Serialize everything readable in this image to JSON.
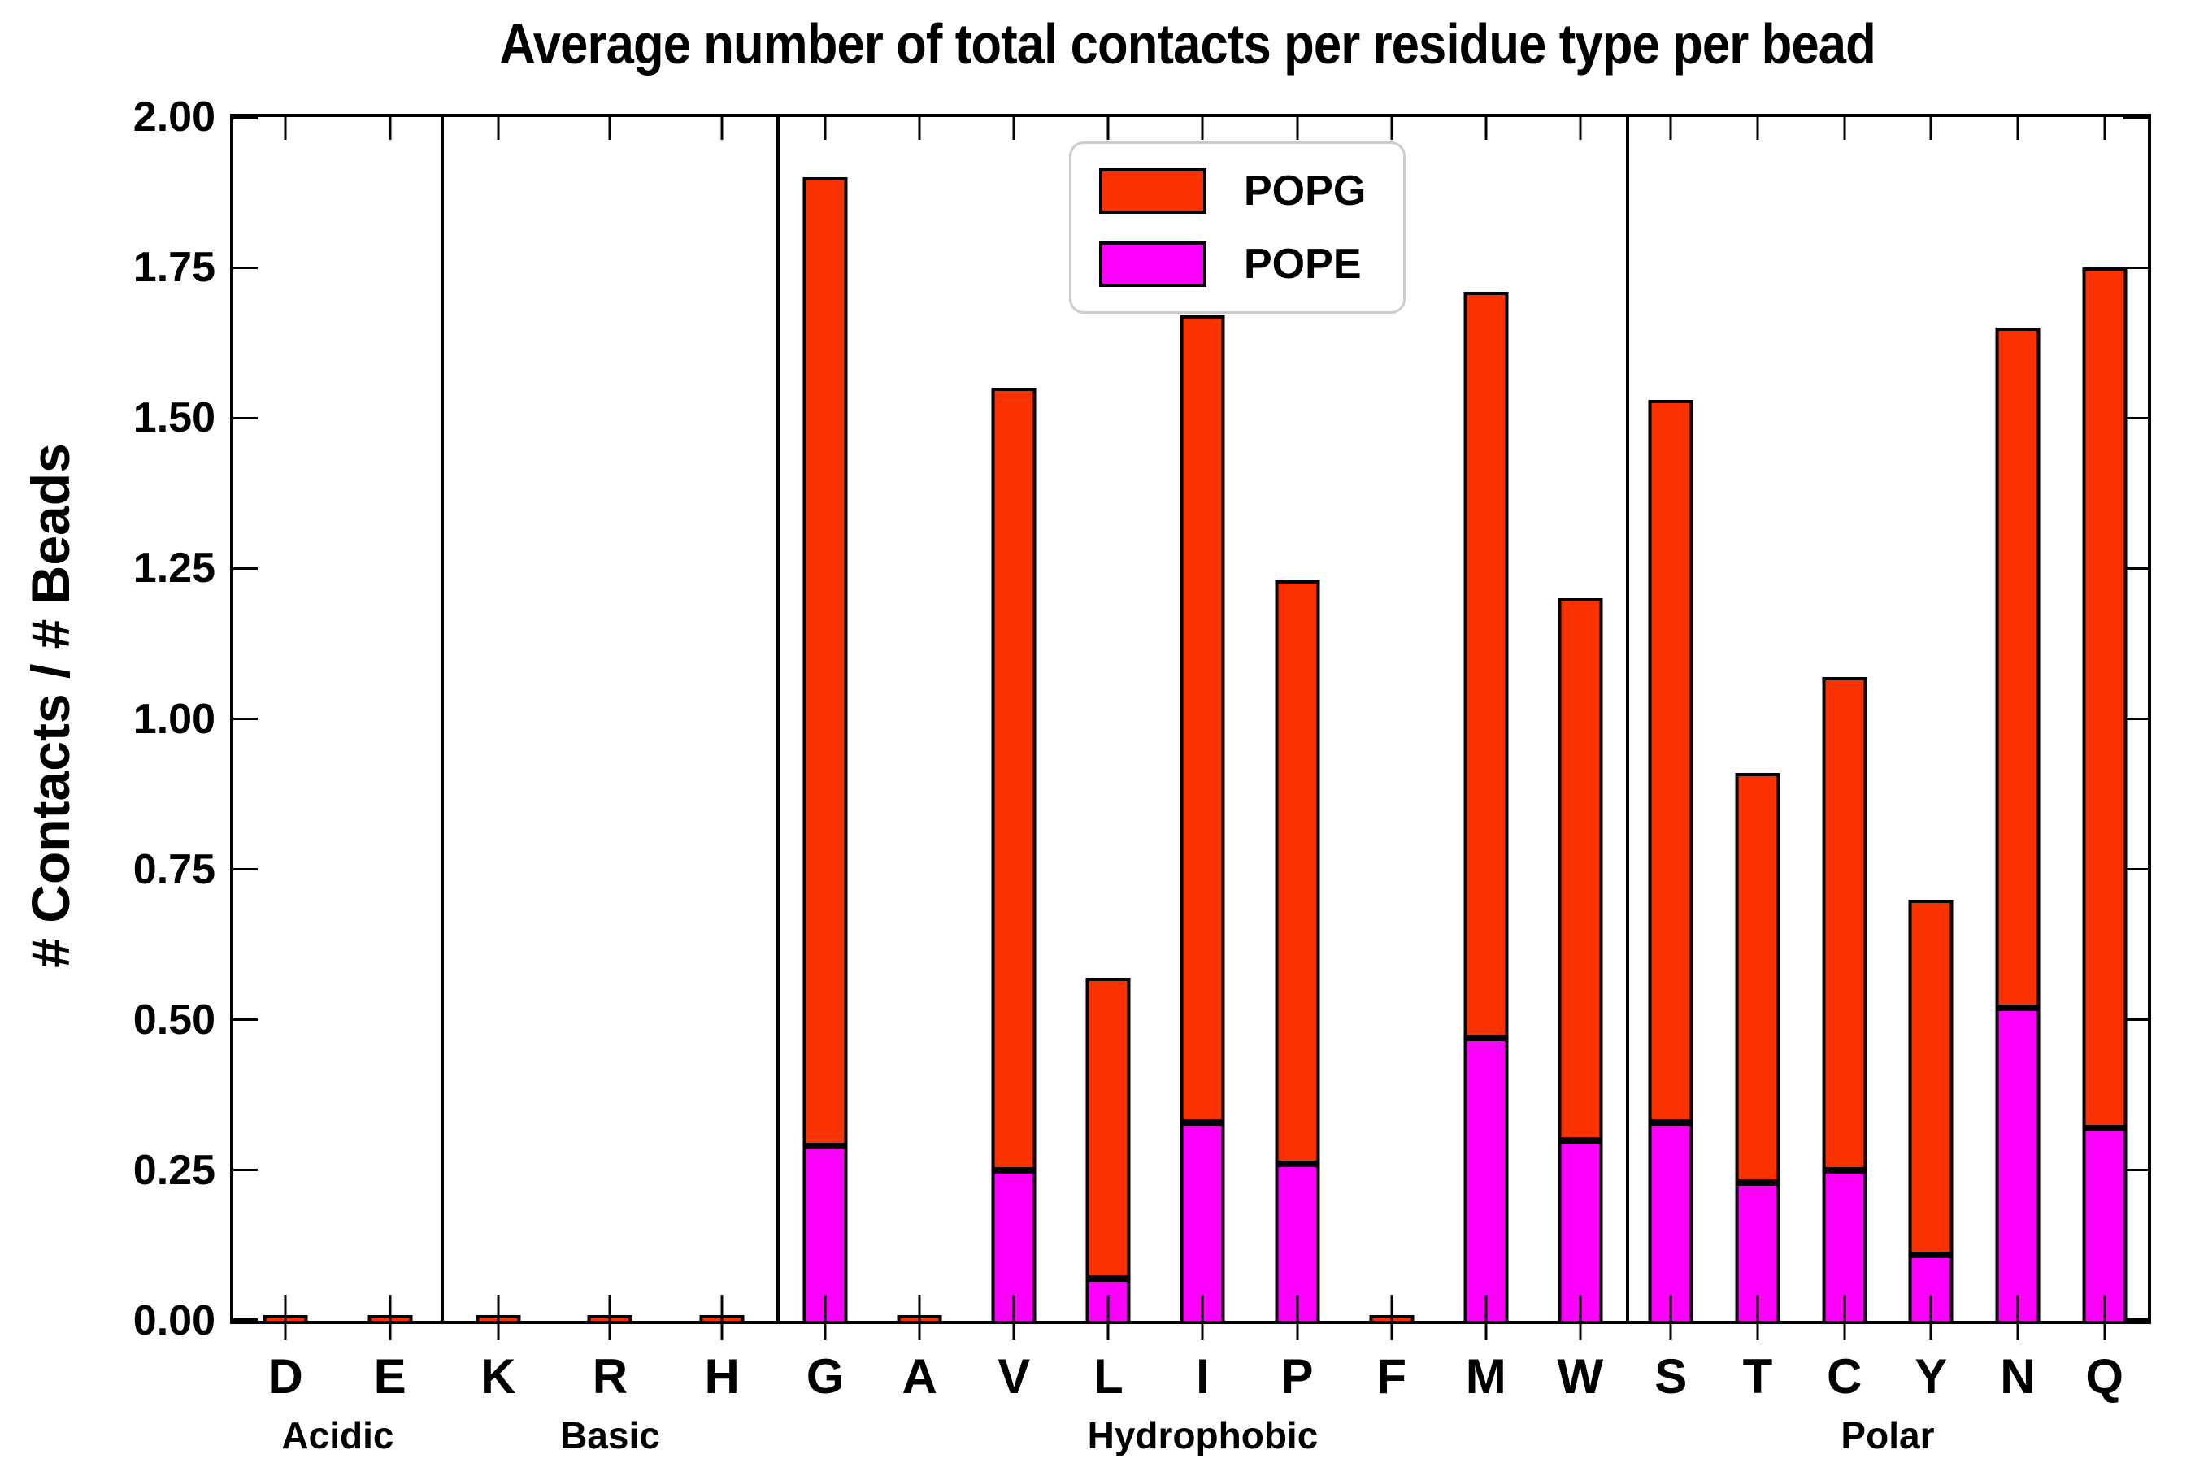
{
  "title": "Average number of total contacts per residue type per bead",
  "ylabel": "# Contacts / # Beads",
  "legend": {
    "popg_label": "POPG",
    "pope_label": "POPE"
  },
  "colors": {
    "popg": "#fa3200",
    "pope": "#ff00ff",
    "axis": "#000000",
    "legend_border": "#cccccc"
  },
  "chart_data": {
    "type": "bar",
    "stacked": true,
    "title": "Average number of total contacts per residue type per bead",
    "xlabel": "",
    "ylabel": "# Contacts / # Beads",
    "ylim": [
      0.0,
      2.0
    ],
    "ytick_step": 0.25,
    "yticks": [
      "0.00",
      "0.25",
      "0.50",
      "0.75",
      "1.00",
      "1.25",
      "1.50",
      "1.75",
      "2.00"
    ],
    "grid": false,
    "legend_position": "upper center",
    "groups": [
      {
        "label": "Acidic",
        "categories": [
          "D",
          "E"
        ],
        "width_frac": 0.1091
      },
      {
        "label": "Basic",
        "categories": [
          "K",
          "R",
          "H"
        ],
        "width_frac": 0.1754
      },
      {
        "label": "Hydrophobic",
        "categories": [
          "G",
          "A",
          "V",
          "L",
          "I",
          "P",
          "F",
          "M",
          "W"
        ],
        "width_frac": 0.4437
      },
      {
        "label": "Polar",
        "categories": [
          "S",
          "T",
          "C",
          "Y",
          "N",
          "Q"
        ],
        "width_frac": 0.2718
      }
    ],
    "categories_flat": [
      "D",
      "E",
      "K",
      "R",
      "H",
      "G",
      "A",
      "V",
      "L",
      "I",
      "P",
      "F",
      "M",
      "W",
      "S",
      "T",
      "C",
      "Y",
      "N",
      "Q"
    ],
    "series": [
      {
        "name": "POPE",
        "color": "#ff00ff",
        "values": [
          0.0,
          0.0,
          0.0,
          0.0,
          0.0,
          0.29,
          0.0,
          0.25,
          0.07,
          0.33,
          0.26,
          0.0,
          0.47,
          0.3,
          0.33,
          0.23,
          0.25,
          0.11,
          0.52,
          0.32
        ]
      },
      {
        "name": "POPG",
        "color": "#fa3200",
        "values": [
          0.01,
          0.01,
          0.01,
          0.01,
          0.01,
          1.61,
          0.01,
          1.3,
          0.5,
          1.34,
          0.97,
          0.01,
          1.24,
          0.9,
          1.2,
          0.68,
          0.82,
          0.59,
          1.13,
          1.43
        ]
      }
    ],
    "totals": [
      0.01,
      0.01,
      0.01,
      0.01,
      0.01,
      1.9,
      0.01,
      1.55,
      0.57,
      1.67,
      1.23,
      0.01,
      1.71,
      1.2,
      1.53,
      0.91,
      1.07,
      0.7,
      1.65,
      1.75
    ]
  }
}
